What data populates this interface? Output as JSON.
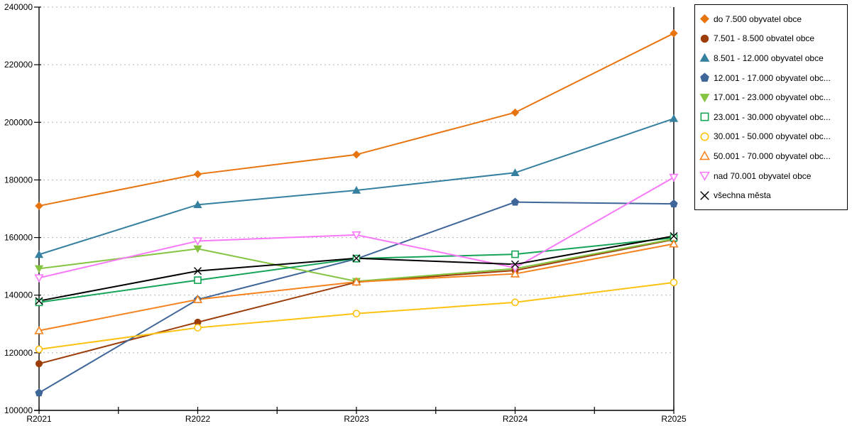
{
  "chart_data": {
    "type": "line",
    "title": "",
    "xlabel": "",
    "ylabel": "",
    "x_categories": [
      "R2021",
      "R2022",
      "R2023",
      "R2024",
      "R2025"
    ],
    "y_axis": {
      "min": 100000,
      "max": 240000,
      "tick_step": 20000,
      "tick_labels": [
        "100000",
        "120000",
        "140000",
        "160000",
        "180000",
        "200000",
        "220000",
        "240000"
      ]
    },
    "grid": "horizontal dashed",
    "legend_position": "right outside, boxed",
    "series": [
      {
        "name": "do 7.500 obyvatel obce",
        "color": "#e8740e",
        "marker": "diamond",
        "style": "solid",
        "values": [
          171000,
          182000,
          188800,
          203400,
          230900
        ]
      },
      {
        "name": "7.501 - 8.500 obvatel obce",
        "color": "#9c3d0a",
        "marker": "circle",
        "style": "solid",
        "values": [
          116200,
          130600,
          144500,
          148600,
          159300
        ]
      },
      {
        "name": "8.501 - 12.000 obyvatel obce",
        "color": "#35809e",
        "marker": "triangle-up",
        "style": "solid",
        "values": [
          154100,
          171400,
          176400,
          182500,
          201300
        ]
      },
      {
        "name": "12.001 - 17.000 obyvatel obc...",
        "color": "#3f6699",
        "marker": "pentagon",
        "style": "solid",
        "values": [
          106100,
          138500,
          152600,
          172300,
          171700
        ]
      },
      {
        "name": "17.001 - 23.000 obyvatel obc...",
        "color": "#84c440",
        "marker": "triangle-down",
        "style": "solid",
        "values": [
          149200,
          156100,
          144800,
          149200,
          159500
        ]
      },
      {
        "name": "23.001 - 30.000 obyvatel obc...",
        "color": "#16a457",
        "marker": "square",
        "style": "hollow",
        "values": [
          137500,
          145200,
          152700,
          154200,
          159900
        ]
      },
      {
        "name": "30.001 - 50.000 obyvatel obc...",
        "color": "#fdc110",
        "marker": "circle",
        "style": "hollow",
        "values": [
          121200,
          128700,
          133600,
          137500,
          144400
        ]
      },
      {
        "name": "50.001 - 70.000 obyvatel obc...",
        "color": "#f5821f",
        "marker": "triangle-up",
        "style": "hollow",
        "values": [
          127700,
          138500,
          144600,
          147400,
          157800
        ]
      },
      {
        "name": "nad 70.001 obyvatel obce",
        "color": "#f978f9",
        "marker": "triangle-down",
        "style": "hollow",
        "values": [
          146000,
          158800,
          160900,
          149500,
          180900
        ]
      },
      {
        "name": "všechna města",
        "color": "#000000",
        "marker": "x",
        "style": "line",
        "values": [
          138000,
          148400,
          152800,
          150700,
          160500
        ]
      }
    ],
    "colors": {
      "gridline": "#b3b3b3",
      "axis": "#000000",
      "background": "#ffffff"
    }
  }
}
